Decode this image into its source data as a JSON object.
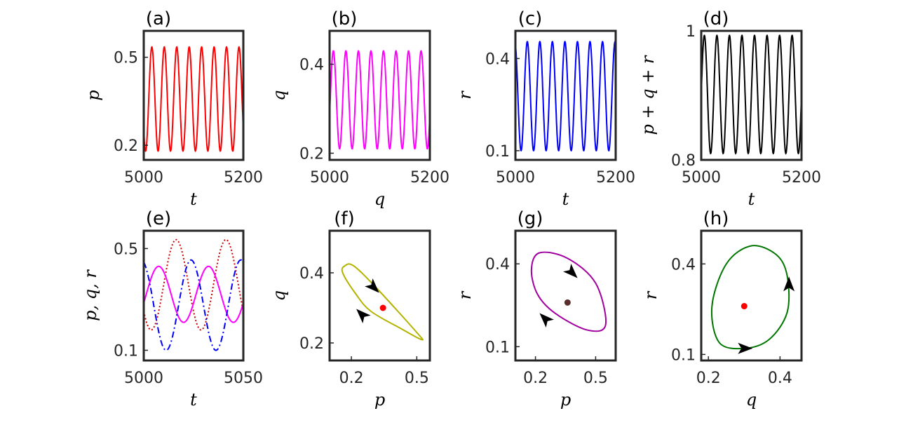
{
  "chart_data": [
    {
      "panel_label": "(a)",
      "type": "line",
      "xlabel": "t",
      "ylabel": "p",
      "xlim": [
        5000,
        5200
      ],
      "ylim": [
        0.15,
        0.59
      ],
      "xticks": [
        "5000",
        "5200"
      ],
      "yticks": [
        "0.2",
        "0.5"
      ],
      "series": [
        {
          "color": "#ff0000",
          "style": "solid",
          "ymin": 0.18,
          "ymax": 0.535,
          "period": 25,
          "phase": 0.6
        }
      ]
    },
    {
      "panel_label": "(b)",
      "type": "line",
      "xlabel": "q",
      "ylabel": "q",
      "xlim": [
        5000,
        5200
      ],
      "ylim": [
        0.185,
        0.475
      ],
      "xticks": [
        "5000",
        "5200"
      ],
      "yticks": [
        "0.2",
        "0.4"
      ],
      "series": [
        {
          "color": "#ff00ff",
          "style": "solid",
          "ymin": 0.21,
          "ymax": 0.43,
          "period": 25,
          "phase": 0.95
        }
      ]
    },
    {
      "panel_label": "(c)",
      "type": "line",
      "xlabel": "t",
      "ylabel": "r",
      "xlim": [
        5000,
        5200
      ],
      "ylim": [
        0.07,
        0.49
      ],
      "xticks": [
        "5000",
        "5200"
      ],
      "yticks": [
        "0.1",
        "0.4"
      ],
      "series": [
        {
          "color": "#0000ff",
          "style": "solid",
          "ymin": 0.1,
          "ymax": 0.455,
          "period": 25,
          "phase": 0.3
        }
      ]
    },
    {
      "panel_label": "(d)",
      "type": "line",
      "xlabel": "t",
      "ylabel": "p + q + r",
      "xlim": [
        5000,
        5200
      ],
      "ylim": [
        0.8,
        1.0
      ],
      "xticks": [
        "5000",
        "5200"
      ],
      "yticks": [
        "0.8",
        "1"
      ],
      "series": [
        {
          "color": "#000000",
          "style": "solid",
          "ymin": 0.81,
          "ymax": 0.993,
          "period": 25,
          "phase": 0.0
        }
      ]
    },
    {
      "panel_label": "(e)",
      "type": "line",
      "xlabel": "t",
      "ylabel": "p, q, r",
      "xlim": [
        5000,
        5050
      ],
      "ylim": [
        0.06,
        0.57
      ],
      "xticks": [
        "5000",
        "5050"
      ],
      "yticks": [
        "0.1",
        "0.5"
      ],
      "series": [
        {
          "color": "#cc0000",
          "style": "dotted",
          "ymin": 0.18,
          "ymax": 0.535,
          "period": 25,
          "phase": 0.6
        },
        {
          "color": "#ff00ff",
          "style": "solid",
          "ymin": 0.21,
          "ymax": 0.43,
          "period": 25,
          "phase": 0.95
        },
        {
          "color": "#0000ff",
          "style": "dashdot",
          "ymin": 0.1,
          "ymax": 0.455,
          "period": 25,
          "phase": 0.3
        }
      ]
    },
    {
      "panel_label": "(f)",
      "type": "phase",
      "xlabel": "p",
      "ylabel": "q",
      "xlim": [
        0.1,
        0.56
      ],
      "ylim": [
        0.15,
        0.52
      ],
      "xticks": [
        "0.2",
        "0.5"
      ],
      "yticks": [
        "0.2",
        "0.4"
      ],
      "curve_color": "#b3b300",
      "loop": [
        [
          0.17,
          0.42
        ],
        [
          0.21,
          0.42
        ],
        [
          0.31,
          0.36
        ],
        [
          0.5,
          0.23
        ],
        [
          0.52,
          0.21
        ],
        [
          0.43,
          0.24
        ],
        [
          0.29,
          0.29
        ],
        [
          0.22,
          0.34
        ],
        [
          0.16,
          0.4
        ]
      ],
      "fixed_point": {
        "x": 0.345,
        "y": 0.3,
        "color": "#ff0000"
      },
      "arrows": [
        {
          "at": [
            0.3,
            0.36
          ],
          "dir": "down-right"
        },
        {
          "at": [
            0.25,
            0.28
          ],
          "dir": "up-left"
        }
      ]
    },
    {
      "panel_label": "(g)",
      "type": "phase",
      "xlabel": "p",
      "ylabel": "r",
      "xlim": [
        0.1,
        0.6
      ],
      "ylim": [
        0.05,
        0.52
      ],
      "xticks": [
        "0.2",
        "0.5"
      ],
      "yticks": [
        "0.1",
        "0.4"
      ],
      "curve_color": "#a000a0",
      "loop": [
        [
          0.22,
          0.44
        ],
        [
          0.36,
          0.42
        ],
        [
          0.5,
          0.33
        ],
        [
          0.55,
          0.18
        ],
        [
          0.46,
          0.16
        ],
        [
          0.3,
          0.22
        ],
        [
          0.21,
          0.29
        ],
        [
          0.18,
          0.38
        ]
      ],
      "fixed_point": {
        "x": 0.36,
        "y": 0.26,
        "color": "#5a2d2d"
      },
      "arrows": [
        {
          "at": [
            0.38,
            0.37
          ],
          "dir": "down-right"
        },
        {
          "at": [
            0.25,
            0.2
          ],
          "dir": "up-left"
        }
      ]
    },
    {
      "panel_label": "(h)",
      "type": "phase",
      "xlabel": "q",
      "ylabel": "r",
      "xlim": [
        0.18,
        0.46
      ],
      "ylim": [
        0.08,
        0.51
      ],
      "xticks": [
        "0.2",
        "0.4"
      ],
      "yticks": [
        "0.1",
        "0.4"
      ],
      "curve_color": "#007700",
      "loop": [
        [
          0.32,
          0.46
        ],
        [
          0.39,
          0.43
        ],
        [
          0.42,
          0.36
        ],
        [
          0.42,
          0.24
        ],
        [
          0.37,
          0.15
        ],
        [
          0.3,
          0.12
        ],
        [
          0.23,
          0.14
        ],
        [
          0.21,
          0.26
        ],
        [
          0.25,
          0.4
        ]
      ],
      "fixed_point": {
        "x": 0.3,
        "y": 0.26,
        "color": "#ff0000"
      },
      "arrows": [
        {
          "at": [
            0.425,
            0.33
          ],
          "dir": "up"
        },
        {
          "at": [
            0.3,
            0.12
          ],
          "dir": "right"
        }
      ]
    }
  ]
}
